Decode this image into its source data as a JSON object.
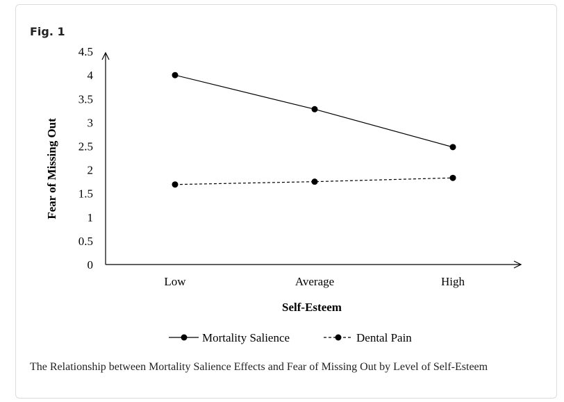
{
  "figure": {
    "label": "Fig. 1",
    "caption": "The Relationship between Mortality Salience Effects and Fear of Missing Out by Level of Self-Esteem"
  },
  "chart_data": {
    "type": "line",
    "title": "",
    "xlabel": "Self-Esteem",
    "ylabel": "Fear of Missing Out",
    "categories": [
      "Low",
      "Average",
      "High"
    ],
    "ylim": [
      0,
      4.5
    ],
    "yticks": [
      "0",
      "0.5",
      "1",
      "1.5",
      "2",
      "2.5",
      "3",
      "3.5",
      "4",
      "4.5"
    ],
    "grid": false,
    "legend_position": "bottom",
    "series": [
      {
        "name": "Mortality Salience",
        "style": "solid",
        "values": [
          4.0,
          3.28,
          2.48
        ]
      },
      {
        "name": "Dental Pain",
        "style": "dashed",
        "values": [
          1.69,
          1.75,
          1.83
        ]
      }
    ],
    "colors": {
      "line": "#000000",
      "axis": "#000000"
    }
  }
}
